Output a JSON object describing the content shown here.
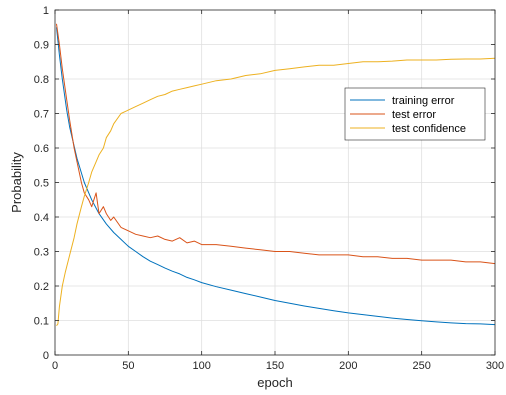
{
  "chart_data": {
    "type": "line",
    "xlabel": "epoch",
    "ylabel": "Probability",
    "xlim": [
      0,
      300
    ],
    "ylim": [
      0,
      1
    ],
    "xticks": [
      0,
      50,
      100,
      150,
      200,
      250,
      300
    ],
    "yticks": [
      0,
      0.1,
      0.2,
      0.3,
      0.4,
      0.5,
      0.6,
      0.7,
      0.8,
      0.9,
      1
    ],
    "grid": true,
    "legend_position": "top-right",
    "series": [
      {
        "name": "training error",
        "color": "#0072BD",
        "points": [
          [
            1,
            0.95
          ],
          [
            3,
            0.87
          ],
          [
            5,
            0.8
          ],
          [
            8,
            0.71
          ],
          [
            10,
            0.66
          ],
          [
            15,
            0.57
          ],
          [
            20,
            0.5
          ],
          [
            25,
            0.45
          ],
          [
            30,
            0.41
          ],
          [
            35,
            0.38
          ],
          [
            40,
            0.355
          ],
          [
            45,
            0.335
          ],
          [
            50,
            0.315
          ],
          [
            55,
            0.3
          ],
          [
            60,
            0.285
          ],
          [
            65,
            0.272
          ],
          [
            70,
            0.262
          ],
          [
            75,
            0.252
          ],
          [
            80,
            0.243
          ],
          [
            85,
            0.235
          ],
          [
            90,
            0.225
          ],
          [
            95,
            0.218
          ],
          [
            100,
            0.21
          ],
          [
            110,
            0.198
          ],
          [
            120,
            0.188
          ],
          [
            130,
            0.178
          ],
          [
            140,
            0.168
          ],
          [
            150,
            0.158
          ],
          [
            160,
            0.15
          ],
          [
            170,
            0.142
          ],
          [
            180,
            0.135
          ],
          [
            190,
            0.128
          ],
          [
            200,
            0.122
          ],
          [
            210,
            0.117
          ],
          [
            220,
            0.112
          ],
          [
            230,
            0.107
          ],
          [
            240,
            0.103
          ],
          [
            250,
            0.099
          ],
          [
            260,
            0.096
          ],
          [
            270,
            0.093
          ],
          [
            280,
            0.091
          ],
          [
            290,
            0.09
          ],
          [
            300,
            0.088
          ]
        ]
      },
      {
        "name": "test error",
        "color": "#D95319",
        "points": [
          [
            1,
            0.96
          ],
          [
            3,
            0.9
          ],
          [
            5,
            0.83
          ],
          [
            8,
            0.74
          ],
          [
            10,
            0.68
          ],
          [
            13,
            0.6
          ],
          [
            15,
            0.56
          ],
          [
            18,
            0.5
          ],
          [
            20,
            0.47
          ],
          [
            23,
            0.45
          ],
          [
            25,
            0.43
          ],
          [
            28,
            0.47
          ],
          [
            30,
            0.41
          ],
          [
            33,
            0.43
          ],
          [
            35,
            0.41
          ],
          [
            38,
            0.39
          ],
          [
            40,
            0.4
          ],
          [
            45,
            0.37
          ],
          [
            50,
            0.36
          ],
          [
            55,
            0.35
          ],
          [
            60,
            0.345
          ],
          [
            65,
            0.34
          ],
          [
            70,
            0.345
          ],
          [
            75,
            0.335
          ],
          [
            80,
            0.33
          ],
          [
            85,
            0.34
          ],
          [
            90,
            0.325
          ],
          [
            95,
            0.33
          ],
          [
            100,
            0.32
          ],
          [
            110,
            0.32
          ],
          [
            120,
            0.315
          ],
          [
            130,
            0.31
          ],
          [
            140,
            0.305
          ],
          [
            150,
            0.3
          ],
          [
            160,
            0.3
          ],
          [
            170,
            0.295
          ],
          [
            180,
            0.29
          ],
          [
            190,
            0.29
          ],
          [
            200,
            0.29
          ],
          [
            210,
            0.285
          ],
          [
            220,
            0.285
          ],
          [
            230,
            0.28
          ],
          [
            240,
            0.28
          ],
          [
            250,
            0.275
          ],
          [
            260,
            0.275
          ],
          [
            270,
            0.275
          ],
          [
            280,
            0.27
          ],
          [
            290,
            0.27
          ],
          [
            300,
            0.265
          ]
        ]
      },
      {
        "name": "test confidence",
        "color": "#EDB120",
        "points": [
          [
            1,
            0.085
          ],
          [
            2,
            0.09
          ],
          [
            3,
            0.14
          ],
          [
            5,
            0.2
          ],
          [
            7,
            0.24
          ],
          [
            10,
            0.29
          ],
          [
            13,
            0.34
          ],
          [
            15,
            0.38
          ],
          [
            18,
            0.43
          ],
          [
            20,
            0.46
          ],
          [
            23,
            0.5
          ],
          [
            25,
            0.53
          ],
          [
            28,
            0.56
          ],
          [
            30,
            0.58
          ],
          [
            33,
            0.6
          ],
          [
            35,
            0.63
          ],
          [
            38,
            0.65
          ],
          [
            40,
            0.67
          ],
          [
            45,
            0.7
          ],
          [
            50,
            0.71
          ],
          [
            55,
            0.72
          ],
          [
            60,
            0.73
          ],
          [
            65,
            0.74
          ],
          [
            70,
            0.75
          ],
          [
            75,
            0.755
          ],
          [
            80,
            0.765
          ],
          [
            85,
            0.77
          ],
          [
            90,
            0.775
          ],
          [
            95,
            0.78
          ],
          [
            100,
            0.785
          ],
          [
            110,
            0.795
          ],
          [
            120,
            0.8
          ],
          [
            130,
            0.81
          ],
          [
            140,
            0.815
          ],
          [
            150,
            0.825
          ],
          [
            160,
            0.83
          ],
          [
            170,
            0.835
          ],
          [
            180,
            0.84
          ],
          [
            190,
            0.84
          ],
          [
            200,
            0.845
          ],
          [
            210,
            0.85
          ],
          [
            220,
            0.85
          ],
          [
            230,
            0.852
          ],
          [
            240,
            0.855
          ],
          [
            250,
            0.855
          ],
          [
            260,
            0.855
          ],
          [
            270,
            0.857
          ],
          [
            280,
            0.858
          ],
          [
            290,
            0.858
          ],
          [
            300,
            0.86
          ]
        ]
      }
    ]
  }
}
